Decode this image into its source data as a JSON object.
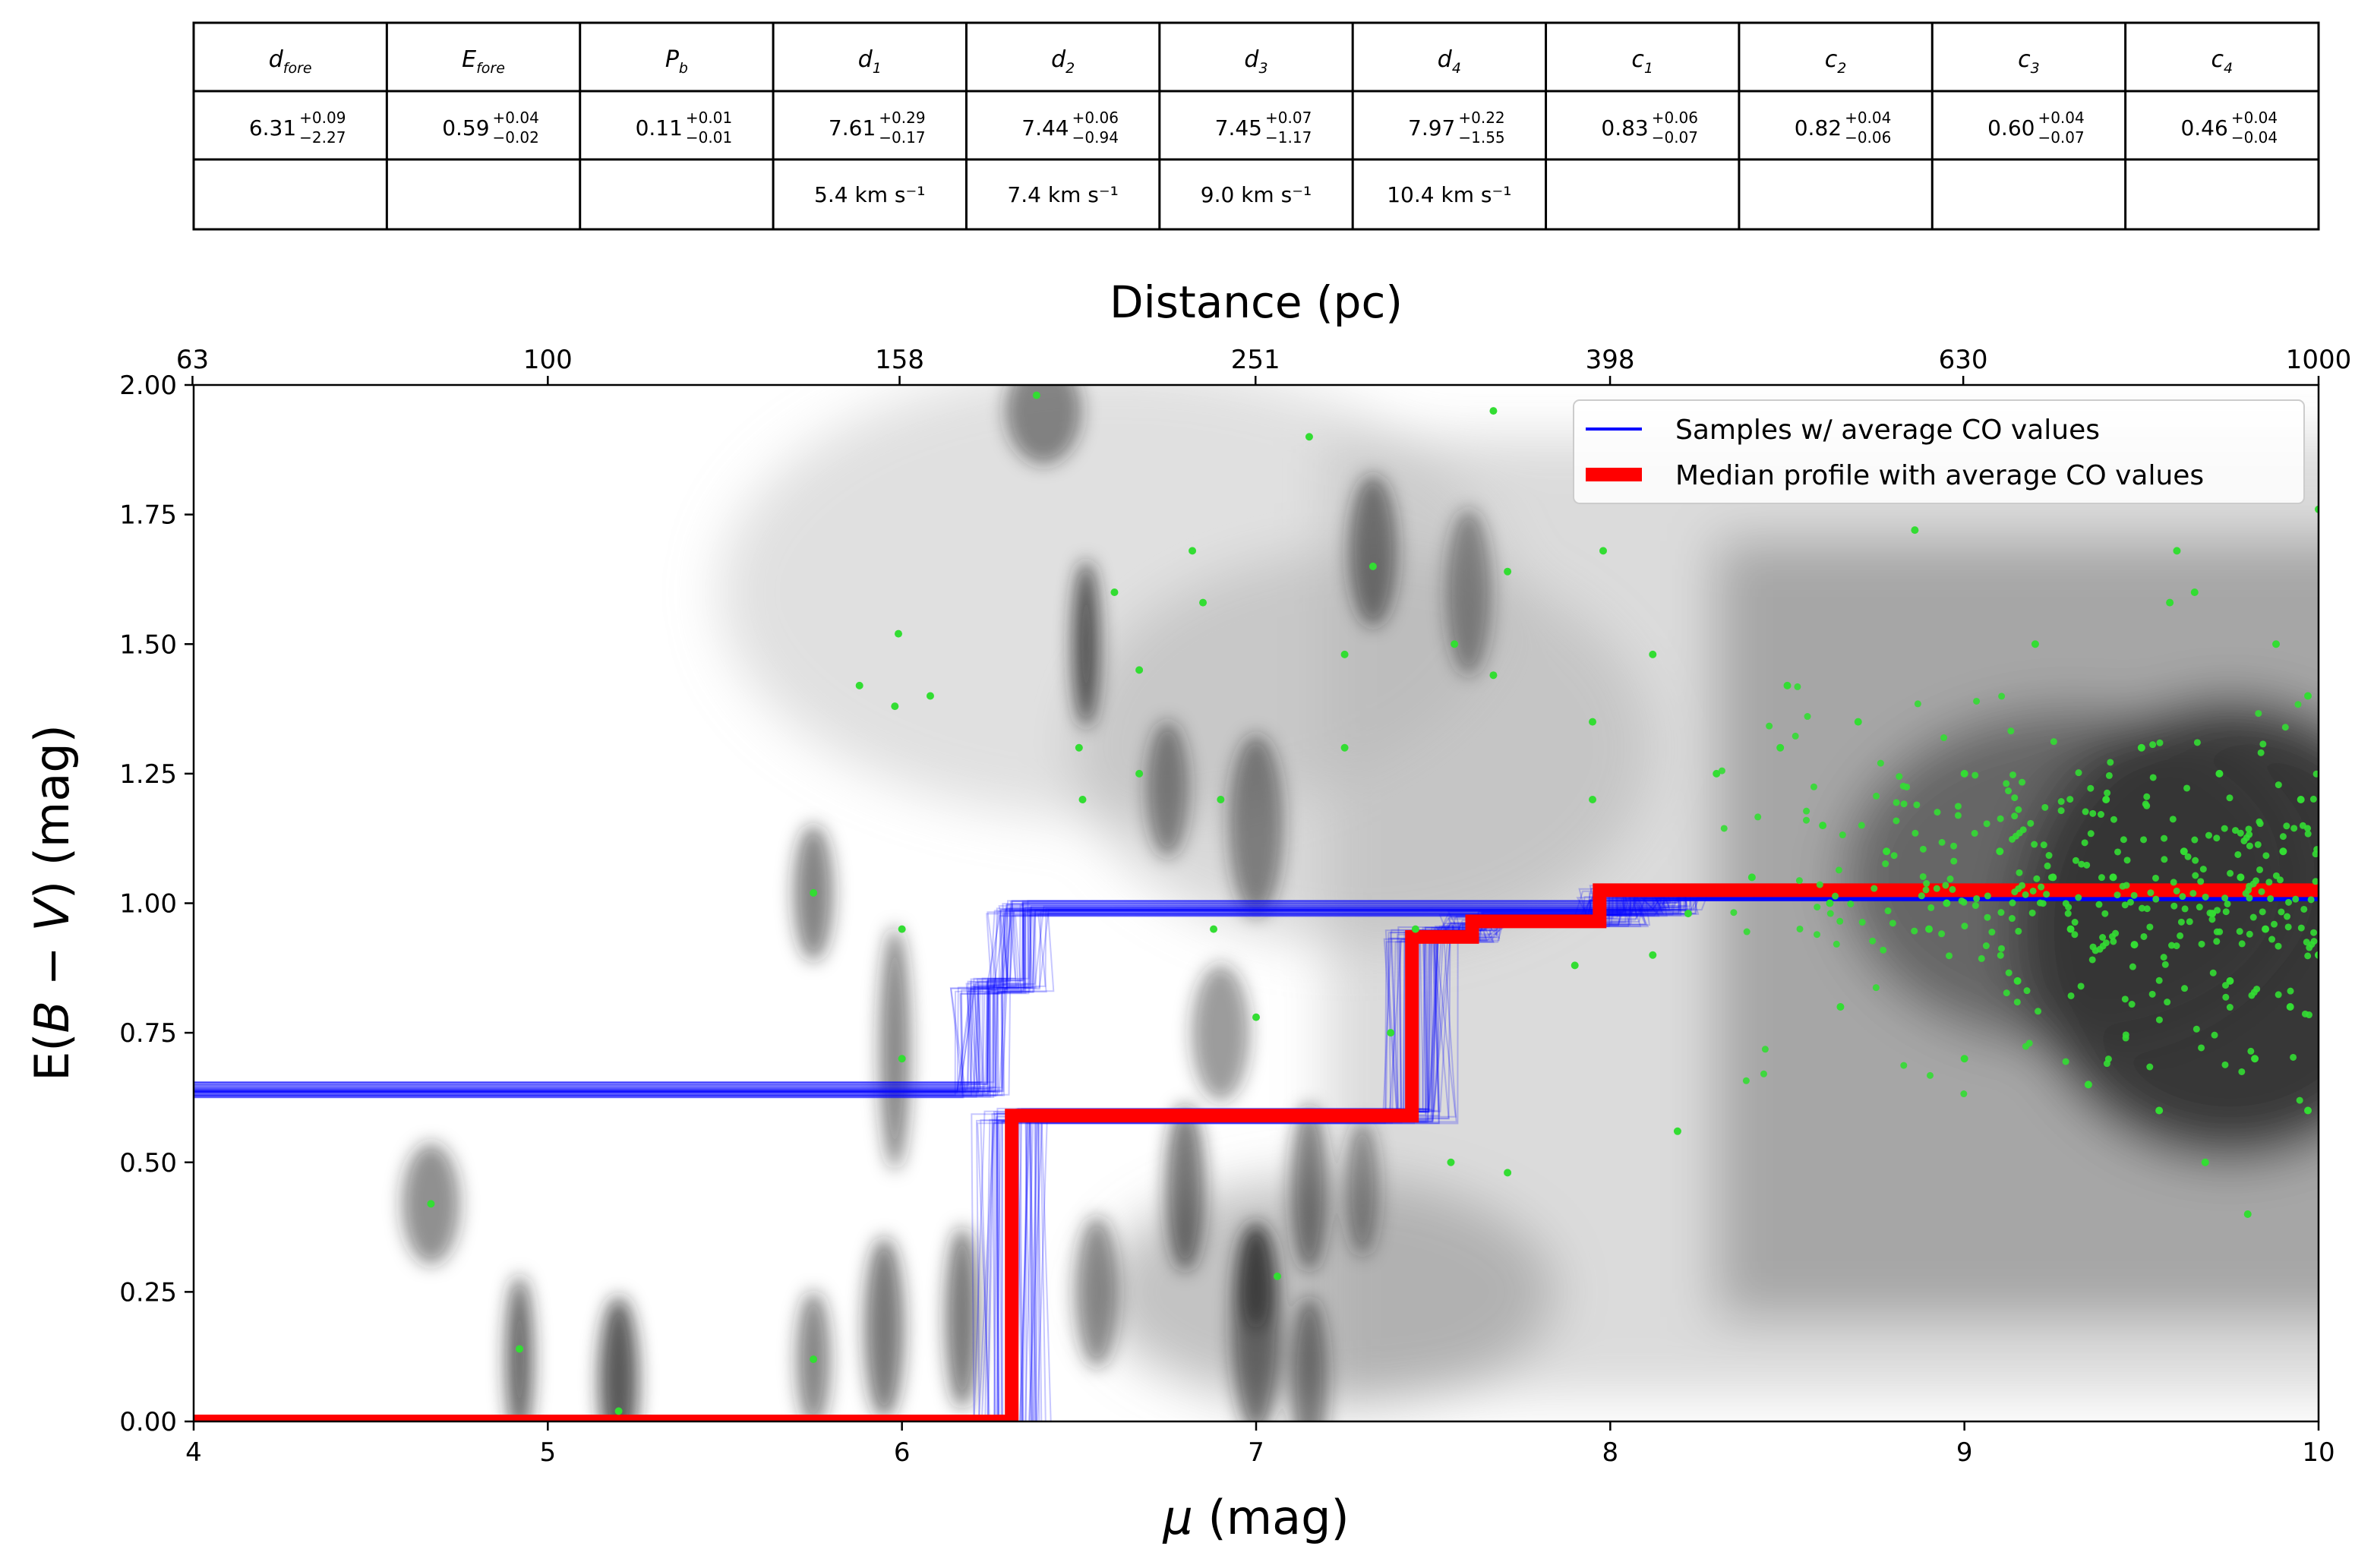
{
  "table": {
    "headers": [
      {
        "base": "d",
        "sub": "fore"
      },
      {
        "base": "E",
        "sub": "fore"
      },
      {
        "base": "P",
        "sub": "b"
      },
      {
        "base": "d",
        "sub": "1"
      },
      {
        "base": "d",
        "sub": "2"
      },
      {
        "base": "d",
        "sub": "3"
      },
      {
        "base": "d",
        "sub": "4"
      },
      {
        "base": "c",
        "sub": "1"
      },
      {
        "base": "c",
        "sub": "2"
      },
      {
        "base": "c",
        "sub": "3"
      },
      {
        "base": "c",
        "sub": "4"
      }
    ],
    "values": [
      {
        "value": "6.31",
        "plus": "+0.09",
        "minus": "−2.27"
      },
      {
        "value": "0.59",
        "plus": "+0.04",
        "minus": "−0.02"
      },
      {
        "value": "0.11",
        "plus": "+0.01",
        "minus": "−0.01"
      },
      {
        "value": "7.61",
        "plus": "+0.29",
        "minus": "−0.17"
      },
      {
        "value": "7.44",
        "plus": "+0.06",
        "minus": "−0.94"
      },
      {
        "value": "7.45",
        "plus": "+0.07",
        "minus": "−1.17"
      },
      {
        "value": "7.97",
        "plus": "+0.22",
        "minus": "−1.55"
      },
      {
        "value": "0.83",
        "plus": "+0.06",
        "minus": "−0.07"
      },
      {
        "value": "0.82",
        "plus": "+0.04",
        "minus": "−0.06"
      },
      {
        "value": "0.60",
        "plus": "+0.04",
        "minus": "−0.07"
      },
      {
        "value": "0.46",
        "plus": "+0.04",
        "minus": "−0.04"
      }
    ],
    "velocities": [
      "",
      "",
      "",
      "5.4 km s⁻¹",
      "7.4 km s⁻¹",
      "9.0 km s⁻¹",
      "10.4 km s⁻¹",
      "",
      "",
      "",
      ""
    ]
  },
  "chart_data": {
    "type": "line",
    "xlabel": "μ (mag)",
    "ylabel": "E(B − V) (mag)",
    "top_xlabel": "Distance (pc)",
    "xlim": [
      4,
      10
    ],
    "ylim": [
      0,
      2
    ],
    "x_ticks": [
      "4",
      "5",
      "6",
      "7",
      "8",
      "9",
      "10"
    ],
    "y_ticks": [
      "0.00",
      "0.25",
      "0.50",
      "0.75",
      "1.00",
      "1.25",
      "1.50",
      "1.75",
      "2.00"
    ],
    "top_ticks": [
      "63",
      "100",
      "158",
      "251",
      "398",
      "630",
      "1000"
    ],
    "legend_position": "top-right",
    "series": [
      {
        "name": "Samples  w/ average CO values",
        "color": "#0000ff",
        "kind": "sample-bundles",
        "bundles": [
          [
            [
              4.0,
              0.0
            ],
            [
              4.0,
              0.64
            ],
            [
              6.25,
              0.64
            ],
            [
              6.25,
              0.84
            ],
            [
              6.35,
              0.84
            ],
            [
              6.35,
              0.99
            ],
            [
              8.2,
              0.99
            ],
            [
              8.2,
              1.02
            ],
            [
              10.0,
              1.02
            ]
          ],
          [
            [
              4.0,
              0.0
            ],
            [
              6.3,
              0.0
            ],
            [
              6.3,
              0.59
            ],
            [
              7.45,
              0.59
            ],
            [
              7.45,
              0.94
            ],
            [
              7.6,
              0.94
            ],
            [
              7.6,
              0.97
            ],
            [
              8.0,
              0.97
            ],
            [
              8.0,
              1.02
            ],
            [
              10.0,
              1.02
            ]
          ]
        ]
      },
      {
        "name": "Median profile with average CO values",
        "color": "#ff0000",
        "kind": "step",
        "points": [
          [
            4.0,
            0.0
          ],
          [
            6.31,
            0.0
          ],
          [
            6.31,
            0.59
          ],
          [
            7.44,
            0.59
          ],
          [
            7.44,
            0.935
          ],
          [
            7.61,
            0.935
          ],
          [
            7.61,
            0.965
          ],
          [
            7.97,
            0.965
          ],
          [
            7.97,
            1.025
          ],
          [
            10.0,
            1.025
          ]
        ]
      },
      {
        "name": "",
        "color": "#33dd33",
        "kind": "scatter-stars",
        "points": [
          [
            4.67,
            0.42
          ],
          [
            4.92,
            0.14
          ],
          [
            5.2,
            0.02
          ],
          [
            5.75,
            1.02
          ],
          [
            5.75,
            0.12
          ],
          [
            5.88,
            1.42
          ],
          [
            5.98,
            1.38
          ],
          [
            5.99,
            1.52
          ],
          [
            6.08,
            1.4
          ],
          [
            6.0,
            0.95
          ],
          [
            6.0,
            0.7
          ],
          [
            6.38,
            1.98
          ],
          [
            6.5,
            1.3
          ],
          [
            6.51,
            1.2
          ],
          [
            6.6,
            1.6
          ],
          [
            6.67,
            1.45
          ],
          [
            6.67,
            1.25
          ],
          [
            6.82,
            1.68
          ],
          [
            6.85,
            1.58
          ],
          [
            6.88,
            0.95
          ],
          [
            7.15,
            1.9
          ],
          [
            7.06,
            0.28
          ],
          [
            7.0,
            0.78
          ],
          [
            6.9,
            1.2
          ],
          [
            7.25,
            1.48
          ],
          [
            7.25,
            1.3
          ],
          [
            7.33,
            1.65
          ],
          [
            7.38,
            0.75
          ],
          [
            7.45,
            0.95
          ],
          [
            7.55,
            0.5
          ],
          [
            7.56,
            1.5
          ],
          [
            7.67,
            1.44
          ],
          [
            7.67,
            1.95
          ],
          [
            7.71,
            1.64
          ],
          [
            7.71,
            0.48
          ],
          [
            7.9,
            0.88
          ],
          [
            7.95,
            1.2
          ],
          [
            7.95,
            1.35
          ],
          [
            7.98,
            1.68
          ],
          [
            8.12,
            1.48
          ],
          [
            8.12,
            0.9
          ],
          [
            8.19,
            0.56
          ],
          [
            8.22,
            0.98
          ],
          [
            8.3,
            1.25
          ],
          [
            8.4,
            1.05
          ],
          [
            8.48,
            1.3
          ],
          [
            8.5,
            1.42
          ],
          [
            8.6,
            1.15
          ],
          [
            8.62,
            1.0
          ],
          [
            8.65,
            0.8
          ],
          [
            8.7,
            1.35
          ],
          [
            8.78,
            1.1
          ],
          [
            8.86,
            1.72
          ],
          [
            8.9,
            0.95
          ],
          [
            8.95,
            1.0
          ],
          [
            9.0,
            1.25
          ],
          [
            9.0,
            0.7
          ],
          [
            9.1,
            1.1
          ],
          [
            9.15,
            0.85
          ],
          [
            9.2,
            1.5
          ],
          [
            9.25,
            1.05
          ],
          [
            9.3,
            0.95
          ],
          [
            9.35,
            0.65
          ],
          [
            9.4,
            1.2
          ],
          [
            9.42,
            1.05
          ],
          [
            9.48,
            0.92
          ],
          [
            9.5,
            1.3
          ],
          [
            9.55,
            0.6
          ],
          [
            9.6,
            1.68
          ],
          [
            9.62,
            1.1
          ],
          [
            9.65,
            1.6
          ],
          [
            9.7,
            0.98
          ],
          [
            9.72,
            1.25
          ],
          [
            9.75,
            0.85
          ],
          [
            9.78,
            1.05
          ],
          [
            9.8,
            0.4
          ],
          [
            9.82,
            0.7
          ],
          [
            9.85,
            0.95
          ],
          [
            9.88,
            1.5
          ],
          [
            9.9,
            1.1
          ],
          [
            9.92,
            0.8
          ],
          [
            9.95,
            1.2
          ],
          [
            9.97,
            0.6
          ],
          [
            9.97,
            1.4
          ],
          [
            10.0,
            0.9
          ],
          [
            10.0,
            1.76
          ],
          [
            9.68,
            0.5
          ],
          [
            9.58,
            1.58
          ]
        ]
      }
    ]
  }
}
